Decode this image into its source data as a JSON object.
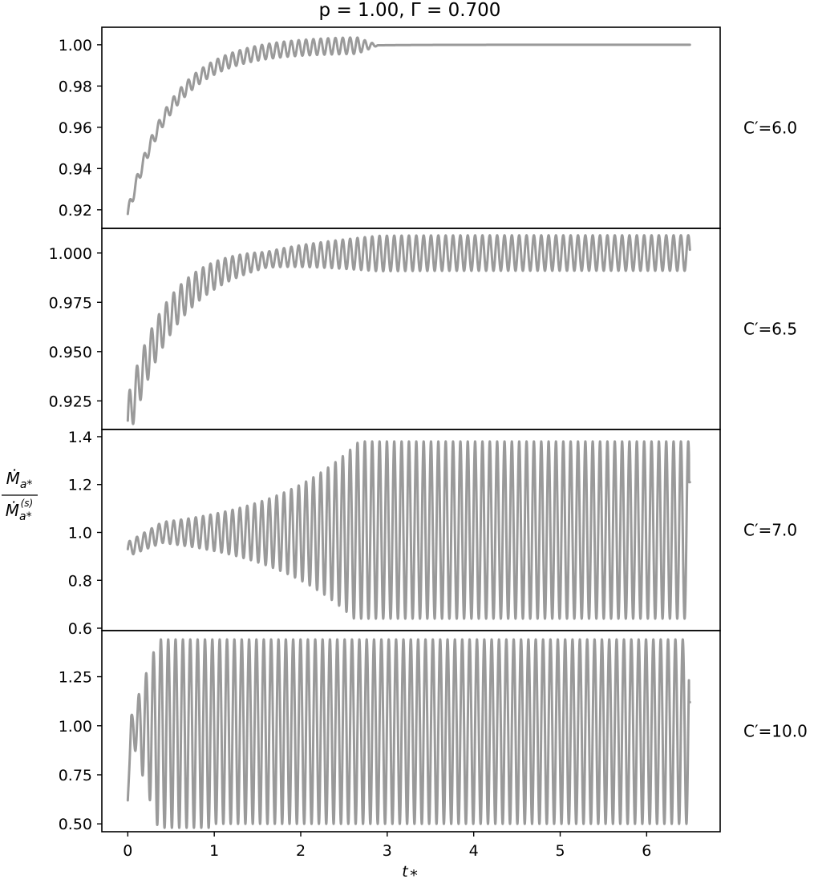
{
  "colors": {
    "series": "#9a9a9a",
    "axis": "#000000",
    "background": "#ffffff"
  },
  "chart_data": {
    "type": "line",
    "title": "p = 1.00, Γ = 0.700",
    "xlabel": "t*",
    "ylabel": "Ṁa* / Ṁa*(s)",
    "xlim": [
      -0.3,
      6.85
    ],
    "xticks": [
      0,
      1,
      2,
      3,
      4,
      5,
      6
    ],
    "grid": false,
    "panels": [
      {
        "label": "C′=6.0",
        "ylim": [
          0.911,
          1.0085
        ],
        "yticks": [
          0.92,
          0.94,
          0.96,
          0.98,
          1.0
        ],
        "ytick_labels": [
          "0.92",
          "0.94",
          "0.96",
          "0.98",
          "1.00"
        ],
        "series": [
          {
            "description": "rises from ~0.918 with small oscillations, oscillation amplitude grows to ~0.004 near t*≈2.5, then damps and settles at 1.000 after t*≈2.8",
            "t_start": 0.0,
            "t_end": 6.5,
            "start": 0.918,
            "plateau": 1.0,
            "rise_tau": 0.5,
            "period": 0.085,
            "amp_initial": 0.003,
            "amp_peak": 0.004,
            "amp_peak_t": 2.4,
            "damp_start": 2.65,
            "damp_end": 2.9
          }
        ]
      },
      {
        "label": "C′=6.5",
        "ylim": [
          0.9105,
          1.0125
        ],
        "yticks": [
          0.925,
          0.95,
          0.975,
          1.0
        ],
        "ytick_labels": [
          "0.925",
          "0.950",
          "0.975",
          "1.000"
        ],
        "series": [
          {
            "description": "rises from ~0.915 with oscillations, settles into a sustained oscillation between ~0.991 and ~1.009",
            "t_start": 0.0,
            "t_end": 6.5,
            "start": 0.915,
            "plateau": 1.0,
            "rise_tau": 0.5,
            "period": 0.085,
            "amp_initial": 0.012,
            "amp_min": 0.004,
            "amp_final": 0.009
          }
        ]
      },
      {
        "label": "C′=7.0",
        "ylim": [
          0.59,
          1.43
        ],
        "yticks": [
          0.6,
          0.8,
          1.0,
          1.2,
          1.4
        ],
        "ytick_labels": [
          "0.6",
          "0.8",
          "1.0",
          "1.2",
          "1.4"
        ],
        "series": [
          {
            "description": "starts near 0.92–0.96, oscillation grows exponentially and saturates between ~0.64 and ~1.40 by t*≈4",
            "t_start": 0.0,
            "t_end": 6.5,
            "start": 0.93,
            "plateau": 1.0,
            "period": 0.085,
            "amp_initial": 0.03,
            "growth_rate": 0.95,
            "max": 1.4,
            "min": 0.64,
            "end_value": 1.21
          }
        ]
      },
      {
        "label": "C′=10.0",
        "ylim": [
          0.46,
          1.485
        ],
        "yticks": [
          0.5,
          0.75,
          1.0,
          1.25
        ],
        "ytick_labels": [
          "0.50",
          "0.75",
          "1.00",
          "1.25"
        ],
        "series": [
          {
            "description": "large oscillation starting at ~0.62, saturates almost immediately between ~0.50 and ~1.44",
            "t_start": 0.0,
            "t_end": 6.5,
            "start": 0.62,
            "plateau": 1.0,
            "period": 0.085,
            "max": 1.44,
            "min": 0.5,
            "early_min": 0.48,
            "end_value": 1.12
          }
        ]
      }
    ]
  }
}
